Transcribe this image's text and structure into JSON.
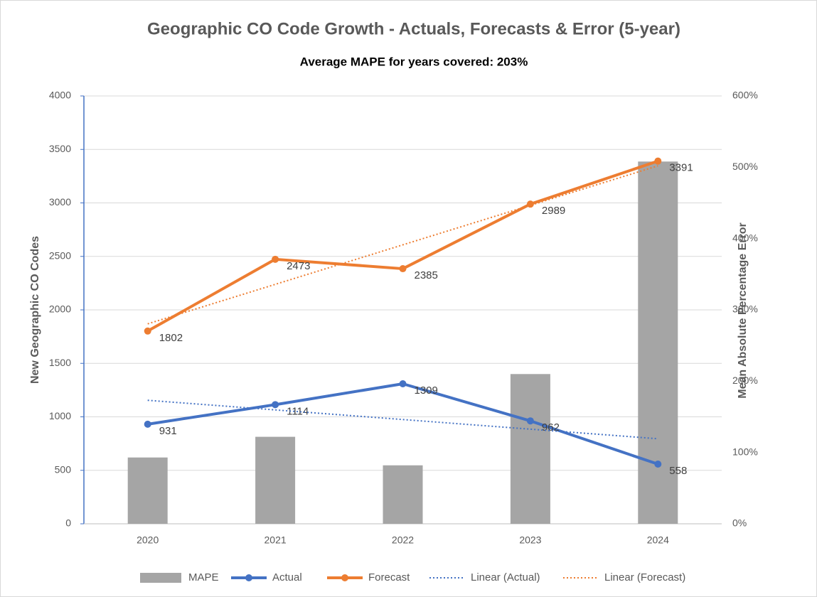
{
  "chart_data": {
    "type": "combo",
    "title": "Geographic CO Code Growth - Actuals, Forecasts & Error (5-year)",
    "subtitle": "Average MAPE for years covered: 203%",
    "y_label": "New Geographic CO Codes",
    "y2_label": "Mean Absolute Percentage Error",
    "categories": [
      "2020",
      "2021",
      "2022",
      "2023",
      "2024"
    ],
    "ylim": [
      0,
      4000
    ],
    "yticks": [
      0,
      500,
      1000,
      1500,
      2000,
      2500,
      3000,
      3500,
      4000
    ],
    "y2lim": [
      0,
      600
    ],
    "y2ticks": [
      {
        "value": 0,
        "label": "0%"
      },
      {
        "value": 100,
        "label": "100%"
      },
      {
        "value": 200,
        "label": "200%"
      },
      {
        "value": 300,
        "label": "300%"
      },
      {
        "value": 400,
        "label": "400%"
      },
      {
        "value": 500,
        "label": "500%"
      },
      {
        "value": 600,
        "label": "600%"
      }
    ],
    "grid": true,
    "legend": "bottom",
    "series": [
      {
        "name": "MAPE",
        "type": "bar",
        "axis": "y2",
        "color": "#a5a5a5",
        "values": [
          93,
          122,
          82,
          210,
          508
        ]
      },
      {
        "name": "Actual",
        "type": "line",
        "color": "#4472c4",
        "data_labels": true,
        "values": [
          931,
          1114,
          1309,
          962,
          558
        ]
      },
      {
        "name": "Forecast",
        "type": "line",
        "color": "#ed7d31",
        "data_labels": true,
        "values": [
          1802,
          2473,
          2385,
          2989,
          3391
        ]
      },
      {
        "name": "Linear (Actual)",
        "type": "trend",
        "color": "#4472c4",
        "values": [
          1154.4,
          1064.6,
          974.8,
          885,
          795.2
        ]
      },
      {
        "name": "Linear (Forecast)",
        "type": "trend",
        "color": "#ed7d31",
        "values": [
          1869.2,
          2238.6,
          2608,
          2977.4,
          3346.8
        ]
      }
    ]
  }
}
